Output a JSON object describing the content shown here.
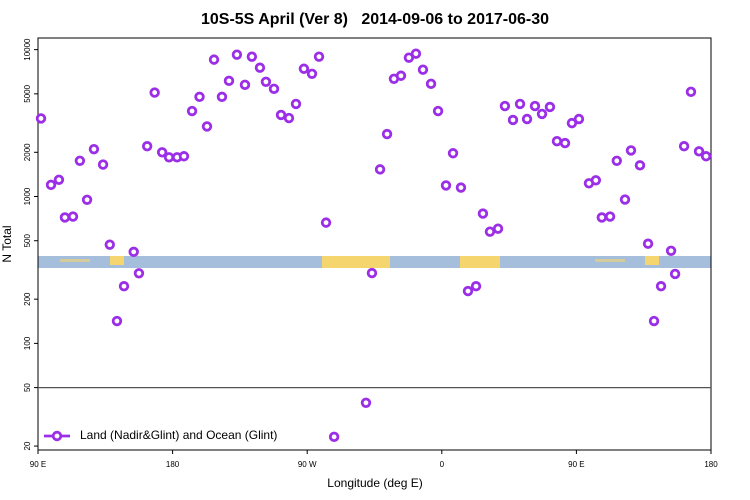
{
  "chart_data": {
    "type": "scatter",
    "title": "10S-5S April (Ver 8)   2014-09-06 to 2017-06-30",
    "x_label": "Longitude (deg E)",
    "y_label": "N Total",
    "log_y": true,
    "legend": "bottom-left",
    "reference_line": 50,
    "xlim": [
      90,
      540
    ],
    "xticks": [
      {
        "value": 90,
        "label": "90 E"
      },
      180,
      {
        "value": 270,
        "label": "90 W"
      },
      {
        "value": 360,
        "label": "0"
      },
      {
        "value": 450,
        "label": "90 E"
      },
      {
        "value": 540,
        "label": "180"
      }
    ],
    "ylim": [
      18.8,
      12000
    ],
    "yticks": [
      20,
      50,
      100,
      200,
      500,
      1000,
      2000,
      5000,
      10000
    ],
    "series": [
      {
        "name": "Land (Nadir&Glint) and Ocean (Glint)",
        "color": "#9b2ee6",
        "x": [
          92,
          98.7,
          104,
          108,
          113.4,
          118,
          122.8,
          127.4,
          133.5,
          138,
          142.8,
          147.5,
          154,
          157.5,
          163,
          168,
          173,
          177.6,
          183,
          187.6,
          193,
          198,
          203,
          207.7,
          213,
          217.7,
          223,
          228.4,
          233,
          238.4,
          242.4,
          247.8,
          252.5,
          257.8,
          262.5,
          267.8,
          273.2,
          277.9,
          282.6,
          288,
          309.3,
          313.3,
          318.7,
          323.4,
          328,
          332.7,
          338,
          342.7,
          347.4,
          352.8,
          357.5,
          362.8,
          367.5,
          372.8,
          377.5,
          382.9,
          387.5,
          392.2,
          397.6,
          402.2,
          407.6,
          412.3,
          417,
          422.3,
          427,
          432.3,
          437,
          442.4,
          447,
          451.7,
          458.4,
          463,
          467,
          472.5,
          477,
          482.5,
          486.5,
          492.5,
          497.9,
          501.9,
          506.6,
          513.3,
          516,
          522,
          526.6,
          532,
          536.7
        ],
        "values": [
          3400,
          1200,
          1300,
          720,
          730,
          1750,
          950,
          2100,
          1650,
          470,
          142,
          245,
          420,
          300,
          2200,
          5100,
          2000,
          1850,
          1850,
          1880,
          3820,
          4770,
          3000,
          8550,
          4770,
          6130,
          9240,
          5760,
          8950,
          7530,
          6040,
          5410,
          3590,
          3420,
          4270,
          7410,
          6850,
          8950,
          664,
          23.1,
          39.4,
          301,
          1530,
          2660,
          6330,
          6640,
          8820,
          9390,
          7300,
          5850,
          3820,
          1190,
          1970,
          1150,
          227,
          245,
          765,
          576,
          604,
          4130,
          3320,
          4270,
          3370,
          4130,
          3650,
          4070,
          2380,
          2310,
          3160,
          3370,
          1230,
          1290,
          720,
          730,
          1750,
          954,
          2060,
          1630,
          477,
          142,
          245,
          427,
          297,
          2200,
          5160,
          2030,
          1880
        ]
      }
    ]
  }
}
